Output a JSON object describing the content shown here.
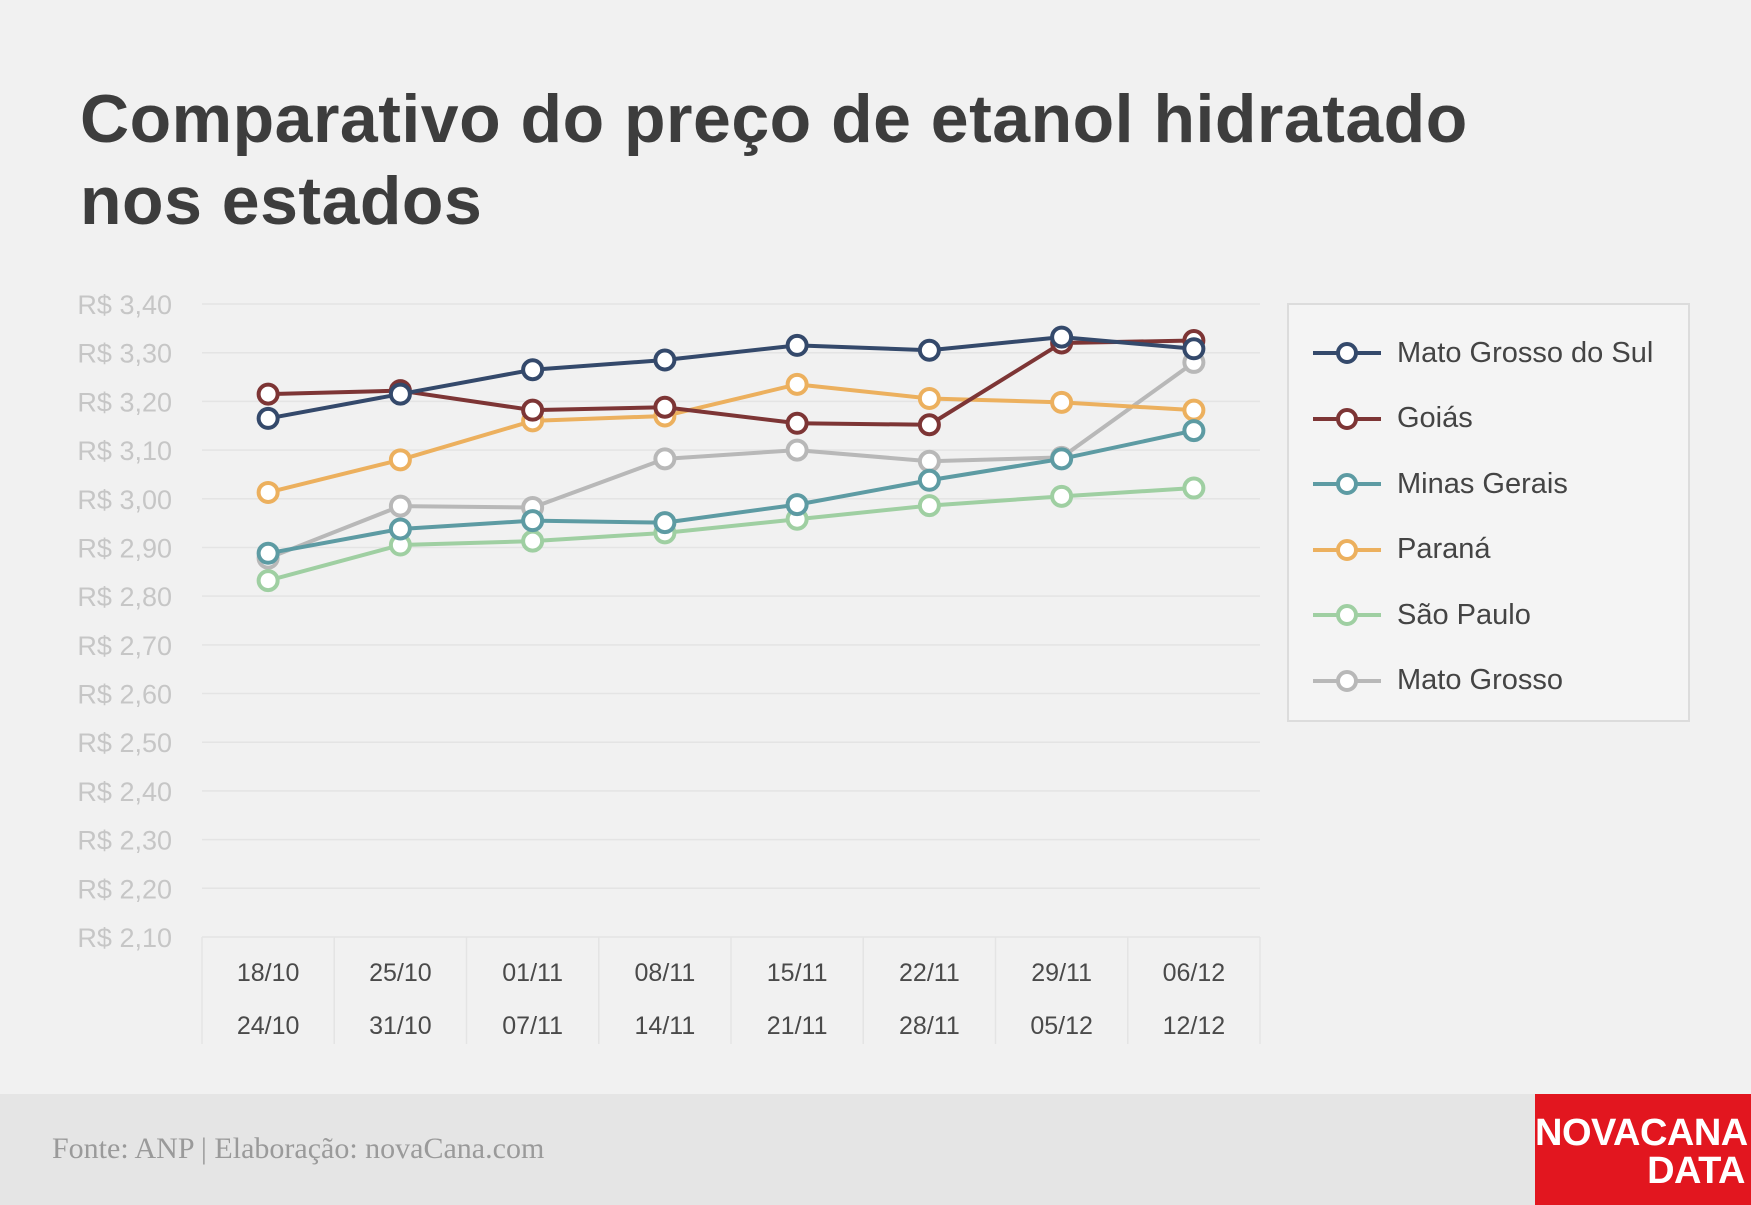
{
  "title": {
    "line1": "Comparativo do preço de etanol hidratado",
    "line2": "nos estados"
  },
  "chart_data": {
    "type": "line",
    "title": "Comparativo do preço de etanol hidratado nos estados",
    "xlabel": "",
    "ylabel": "",
    "ylim": [
      2.1,
      3.4
    ],
    "y_ticks": [
      "R$ 3,40",
      "R$ 3,30",
      "R$ 3,20",
      "R$ 3,10",
      "R$ 3,00",
      "R$ 2,90",
      "R$ 2,80",
      "R$ 2,70",
      "R$ 2,60",
      "R$ 2,50",
      "R$ 2,40",
      "R$ 2,30",
      "R$ 2,20",
      "R$ 2,10"
    ],
    "y_tick_values": [
      3.4,
      3.3,
      3.2,
      3.1,
      3.0,
      2.9,
      2.8,
      2.7,
      2.6,
      2.5,
      2.4,
      2.3,
      2.2,
      2.1
    ],
    "categories": [
      {
        "start": "18/10",
        "end": "24/10"
      },
      {
        "start": "25/10",
        "end": "31/10"
      },
      {
        "start": "01/11",
        "end": "07/11"
      },
      {
        "start": "08/11",
        "end": "14/11"
      },
      {
        "start": "15/11",
        "end": "21/11"
      },
      {
        "start": "22/11",
        "end": "28/11"
      },
      {
        "start": "29/11",
        "end": "05/12"
      },
      {
        "start": "06/12",
        "end": "12/12"
      }
    ],
    "grid": true,
    "legend_position": "right",
    "series": [
      {
        "name": "Mato Grosso do Sul",
        "color": "#34496b",
        "values": [
          3.165,
          3.215,
          3.265,
          3.285,
          3.315,
          3.305,
          3.332,
          3.308
        ]
      },
      {
        "name": "Goiás",
        "color": "#7d3535",
        "values": [
          3.215,
          3.222,
          3.182,
          3.188,
          3.155,
          3.152,
          3.32,
          3.325
        ]
      },
      {
        "name": "Minas Gerais",
        "color": "#5d9ba3",
        "values": [
          2.888,
          2.938,
          2.955,
          2.951,
          2.988,
          3.038,
          3.082,
          3.14
        ]
      },
      {
        "name": "Paraná",
        "color": "#ecb05e",
        "values": [
          3.013,
          3.08,
          3.16,
          3.17,
          3.235,
          3.206,
          3.198,
          3.182
        ]
      },
      {
        "name": "São Paulo",
        "color": "#9fcfa2",
        "values": [
          2.832,
          2.905,
          2.913,
          2.93,
          2.958,
          2.986,
          3.005,
          3.022
        ]
      },
      {
        "name": "Mato Grosso",
        "color": "#b8b8b8",
        "values": [
          2.878,
          2.985,
          2.982,
          3.082,
          3.1,
          3.077,
          3.085,
          3.28
        ]
      }
    ]
  },
  "footer": {
    "source": "Fonte: ANP | Elaboração: novaCana.com",
    "logo_line1": "NOVACANA",
    "logo_line2": "DATA",
    "logo_color": "#e2161f"
  }
}
